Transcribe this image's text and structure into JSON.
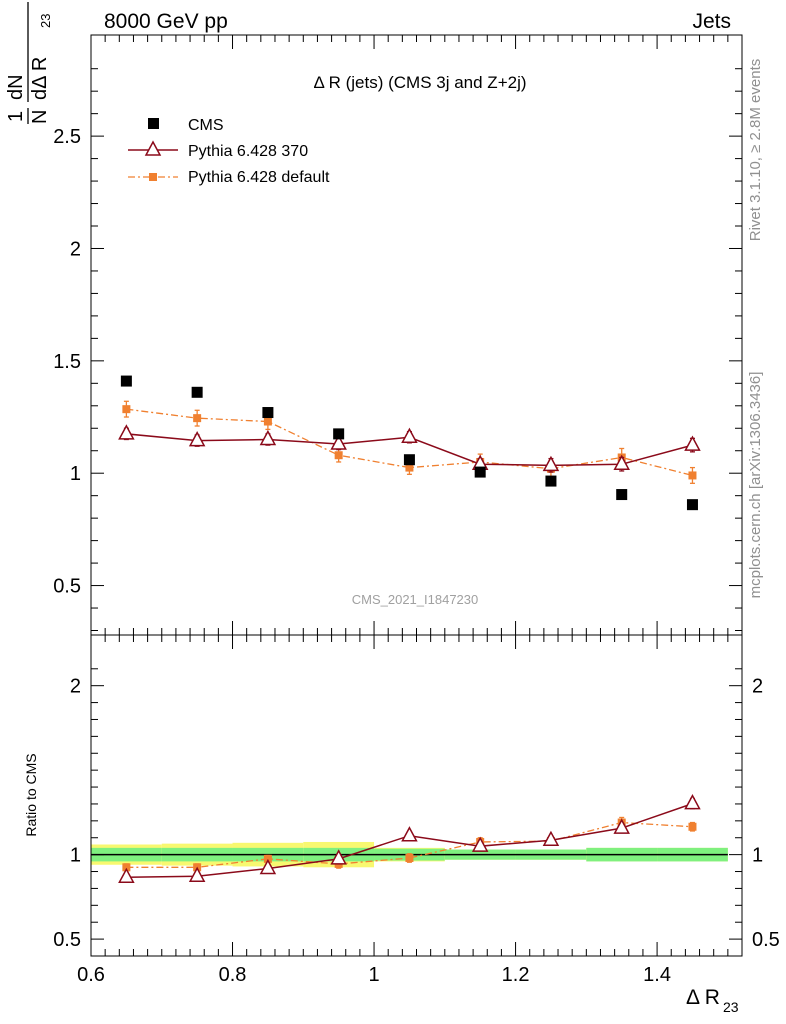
{
  "header": {
    "left": "8000 GeV pp",
    "right": "Jets"
  },
  "side_labels": {
    "rivet": "Rivet 3.1.10, ≥ 2.8M events",
    "mcplots": "mcplots.cern.ch [arXiv:1306.3436]"
  },
  "watermark": "CMS_2021_I1847230",
  "colors": {
    "cms": "#000000",
    "pythia370": "#8b0a1a",
    "pythia_default": "#f08030",
    "band_green": "#7ff07f",
    "band_yellow": "#f8f870"
  },
  "chart_data": [
    {
      "type": "scatter",
      "panel": "main",
      "title": "Δ R (jets) (CMS 3j and Z+2j)",
      "ylabel": "1/N dN/dΔ R23",
      "ylim": [
        0.28,
        2.95
      ],
      "yticks": [
        0.5,
        1,
        1.5,
        2,
        2.5
      ],
      "ytick_labels": [
        "0.5",
        "1",
        "1.5",
        "2",
        "2.5"
      ],
      "legend_placement": "top-left",
      "legend": [
        "CMS",
        "Pythia 6.428 370",
        "Pythia 6.428 default"
      ],
      "x": [
        0.65,
        0.75,
        0.85,
        0.95,
        1.05,
        1.15,
        1.25,
        1.35,
        1.45
      ],
      "series": [
        {
          "name": "CMS",
          "marker": "square",
          "values": [
            1.41,
            1.36,
            1.27,
            1.175,
            1.06,
            1.005,
            0.965,
            0.905,
            0.86
          ],
          "errors": [
            0,
            0,
            0,
            0,
            0,
            0,
            0,
            0,
            0
          ]
        },
        {
          "name": "Pythia 6.428 370",
          "marker": "triangle",
          "values": [
            1.175,
            1.145,
            1.15,
            1.13,
            1.16,
            1.04,
            1.035,
            1.04,
            1.125
          ],
          "errors": [
            0.025,
            0.025,
            0.025,
            0.025,
            0.025,
            0.025,
            0.03,
            0.03,
            0.03
          ]
        },
        {
          "name": "Pythia 6.428 default",
          "marker": "small-square",
          "values": [
            1.285,
            1.245,
            1.23,
            1.08,
            1.025,
            1.05,
            1.02,
            1.07,
            0.99
          ],
          "errors": [
            0.035,
            0.035,
            0.035,
            0.03,
            0.03,
            0.035,
            0.035,
            0.04,
            0.035
          ]
        }
      ]
    },
    {
      "type": "scatter",
      "panel": "ratio",
      "ylabel": "Ratio to CMS",
      "xlabel": "Δ R23",
      "xlim": [
        0.6,
        1.52
      ],
      "xticks": [
        0.6,
        0.8,
        1.0,
        1.2,
        1.4
      ],
      "xtick_labels": [
        "0.6",
        "0.8",
        "1",
        "1.2",
        "1.4"
      ],
      "ylim": [
        0.4,
        2.3
      ],
      "yticks": [
        0.5,
        1,
        2
      ],
      "ytick_labels": [
        "0.5",
        "1",
        "2"
      ],
      "x": [
        0.65,
        0.75,
        0.85,
        0.95,
        1.05,
        1.15,
        1.25,
        1.35,
        1.45
      ],
      "band": {
        "edges": [
          0.6,
          0.7,
          0.8,
          0.9,
          1.0,
          1.1,
          1.2,
          1.3,
          1.4,
          1.5
        ],
        "green_half": [
          0.04,
          0.04,
          0.04,
          0.04,
          0.035,
          0.03,
          0.03,
          0.04,
          0.04
        ],
        "yellow_half": [
          0.06,
          0.065,
          0.07,
          0.075,
          0.04,
          0.03,
          0.03,
          0.04,
          0.04
        ]
      },
      "series": [
        {
          "name": "Pythia 6.428 370",
          "values": [
            0.866,
            0.872,
            0.918,
            0.975,
            1.112,
            1.05,
            1.085,
            1.157,
            1.302
          ],
          "errors": [
            0.015,
            0.015,
            0.015,
            0.02,
            0.02,
            0.02,
            0.025,
            0.025,
            0.03
          ]
        },
        {
          "name": "Pythia 6.428 default",
          "values": [
            0.925,
            0.925,
            0.975,
            0.945,
            0.98,
            1.075,
            1.08,
            1.19,
            1.165
          ],
          "errors": [
            0.02,
            0.02,
            0.02,
            0.025,
            0.025,
            0.025,
            0.025,
            0.03,
            0.025
          ]
        }
      ]
    }
  ]
}
